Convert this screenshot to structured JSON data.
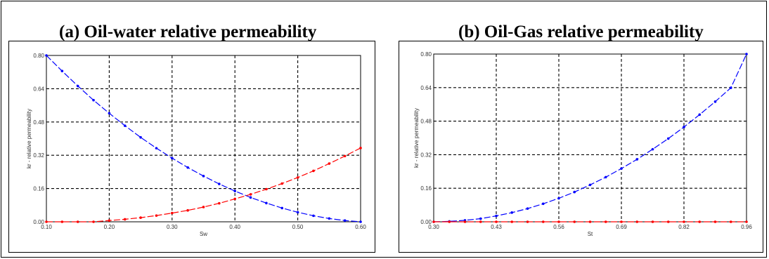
{
  "panels": {
    "a": {
      "title": "(a) Oil-water relative permeability"
    },
    "b": {
      "title": "(b) Oil-Gas relative permeability"
    }
  },
  "colors": {
    "oil_curve": "#0000ff",
    "second_curve": "#ff0000",
    "grid": "#000000"
  },
  "chart_data": [
    {
      "type": "line",
      "title": "(a) Oil-water relative permeability",
      "xlabel": "Sw",
      "ylabel": "kr - relative permeability",
      "xlim": [
        0.1,
        0.6
      ],
      "ylim": [
        0.0,
        0.8
      ],
      "xticks": [
        "0.10",
        "0.20",
        "0.30",
        "0.40",
        "0.50",
        "0.60"
      ],
      "yticks": [
        "0.00",
        "0.16",
        "0.32",
        "0.48",
        "0.64",
        "0.80"
      ],
      "grid": true,
      "series": [
        {
          "color": "#0000ff",
          "x": [
            0.1,
            0.125,
            0.15,
            0.175,
            0.2,
            0.225,
            0.25,
            0.275,
            0.3,
            0.325,
            0.35,
            0.375,
            0.4,
            0.425,
            0.45,
            0.475,
            0.5,
            0.525,
            0.55,
            0.575,
            0.6
          ],
          "y": [
            0.8,
            0.725,
            0.653,
            0.585,
            0.522,
            0.462,
            0.406,
            0.354,
            0.306,
            0.261,
            0.22,
            0.182,
            0.148,
            0.117,
            0.09,
            0.066,
            0.046,
            0.029,
            0.016,
            0.006,
            0.0
          ]
        },
        {
          "color": "#ff0000",
          "x": [
            0.1,
            0.125,
            0.15,
            0.175,
            0.2,
            0.225,
            0.25,
            0.275,
            0.3,
            0.325,
            0.35,
            0.375,
            0.4,
            0.425,
            0.45,
            0.475,
            0.5,
            0.525,
            0.55,
            0.575,
            0.6
          ],
          "y": [
            0.0,
            0.0,
            0.0,
            0.0,
            0.006,
            0.012,
            0.02,
            0.03,
            0.042,
            0.055,
            0.071,
            0.089,
            0.11,
            0.132,
            0.157,
            0.184,
            0.213,
            0.245,
            0.28,
            0.316,
            0.355
          ]
        }
      ]
    },
    {
      "type": "line",
      "title": "(b) Oil-Gas relative permeability",
      "xlabel": "St",
      "ylabel": "kr - relative permeability",
      "xlim": [
        0.3,
        0.96
      ],
      "ylim": [
        0.0,
        0.8
      ],
      "xticks": [
        "0.30",
        "0.43",
        "0.56",
        "0.69",
        "0.82",
        "0.96"
      ],
      "yticks": [
        "0.00",
        "0.16",
        "0.32",
        "0.48",
        "0.64",
        "0.80"
      ],
      "grid": true,
      "series": [
        {
          "color": "#0000ff",
          "x": [
            0.3,
            0.333,
            0.366,
            0.399,
            0.432,
            0.465,
            0.498,
            0.531,
            0.564,
            0.597,
            0.63,
            0.663,
            0.696,
            0.729,
            0.762,
            0.795,
            0.828,
            0.861,
            0.894,
            0.927,
            0.96
          ],
          "y": [
            0.0,
            0.002,
            0.007,
            0.015,
            0.028,
            0.044,
            0.063,
            0.086,
            0.112,
            0.142,
            0.176,
            0.213,
            0.254,
            0.298,
            0.346,
            0.397,
            0.452,
            0.511,
            0.573,
            0.639,
            0.8
          ]
        },
        {
          "color": "#ff0000",
          "x": [
            0.3,
            0.333,
            0.366,
            0.399,
            0.432,
            0.465,
            0.498,
            0.531,
            0.564,
            0.597,
            0.63,
            0.663,
            0.696,
            0.729,
            0.762,
            0.795,
            0.828,
            0.861,
            0.894,
            0.927,
            0.96
          ],
          "y": [
            0.0,
            0.0,
            0.0,
            0.0,
            0.0,
            0.0,
            0.0,
            0.0,
            0.0,
            0.0,
            0.0,
            0.0,
            0.0,
            0.0,
            0.0,
            0.0,
            0.0,
            0.0,
            0.0,
            0.0,
            0.0
          ]
        }
      ]
    }
  ]
}
